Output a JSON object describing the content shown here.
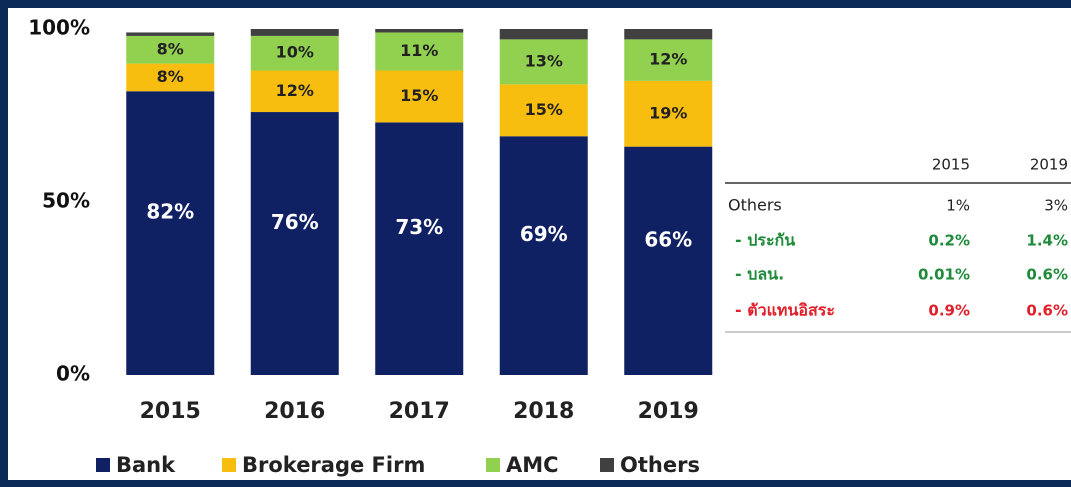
{
  "chart_data": {
    "type": "stacked-bar",
    "categories": [
      "2015",
      "2016",
      "2017",
      "2018",
      "2019"
    ],
    "series": [
      {
        "name": "Bank",
        "color": "#0f2063",
        "values": [
          82,
          76,
          73,
          69,
          66
        ],
        "value_labels": [
          "82%",
          "76%",
          "73%",
          "69%",
          "66%"
        ]
      },
      {
        "name": "Brokerage Firm",
        "color": "#f7bd0f",
        "values": [
          8,
          12,
          15,
          15,
          19
        ],
        "value_labels": [
          "8%",
          "12%",
          "15%",
          "15%",
          "19%"
        ]
      },
      {
        "name": "AMC",
        "color": "#92d050",
        "values": [
          8,
          10,
          11,
          13,
          12
        ],
        "value_labels": [
          "8%",
          "10%",
          "11%",
          "13%",
          "12%"
        ]
      },
      {
        "name": "Others",
        "color": "#404040",
        "values": [
          1,
          2,
          1,
          3,
          3
        ]
      }
    ],
    "ylim": [
      0,
      100
    ],
    "yticks": [
      {
        "value": 0,
        "label": "0%"
      },
      {
        "value": 50,
        "label": "50%"
      },
      {
        "value": 100,
        "label": "100%"
      }
    ],
    "legend": "bottom"
  },
  "table": {
    "header": [
      "2015",
      "2019"
    ],
    "rows": [
      {
        "label": "Others",
        "values": [
          "1%",
          "3%"
        ],
        "color": "#222222"
      },
      {
        "label": "- ประกัน",
        "values": [
          "0.2%",
          "1.4%"
        ],
        "color": "#1e8a3a"
      },
      {
        "label": "- บลน.",
        "values": [
          "0.01%",
          "0.6%"
        ],
        "color": "#1e8a3a"
      },
      {
        "label": "- ตัวแทนอิสระ",
        "values": [
          "0.9%",
          "0.6%"
        ],
        "color": "#e0202a"
      }
    ]
  }
}
